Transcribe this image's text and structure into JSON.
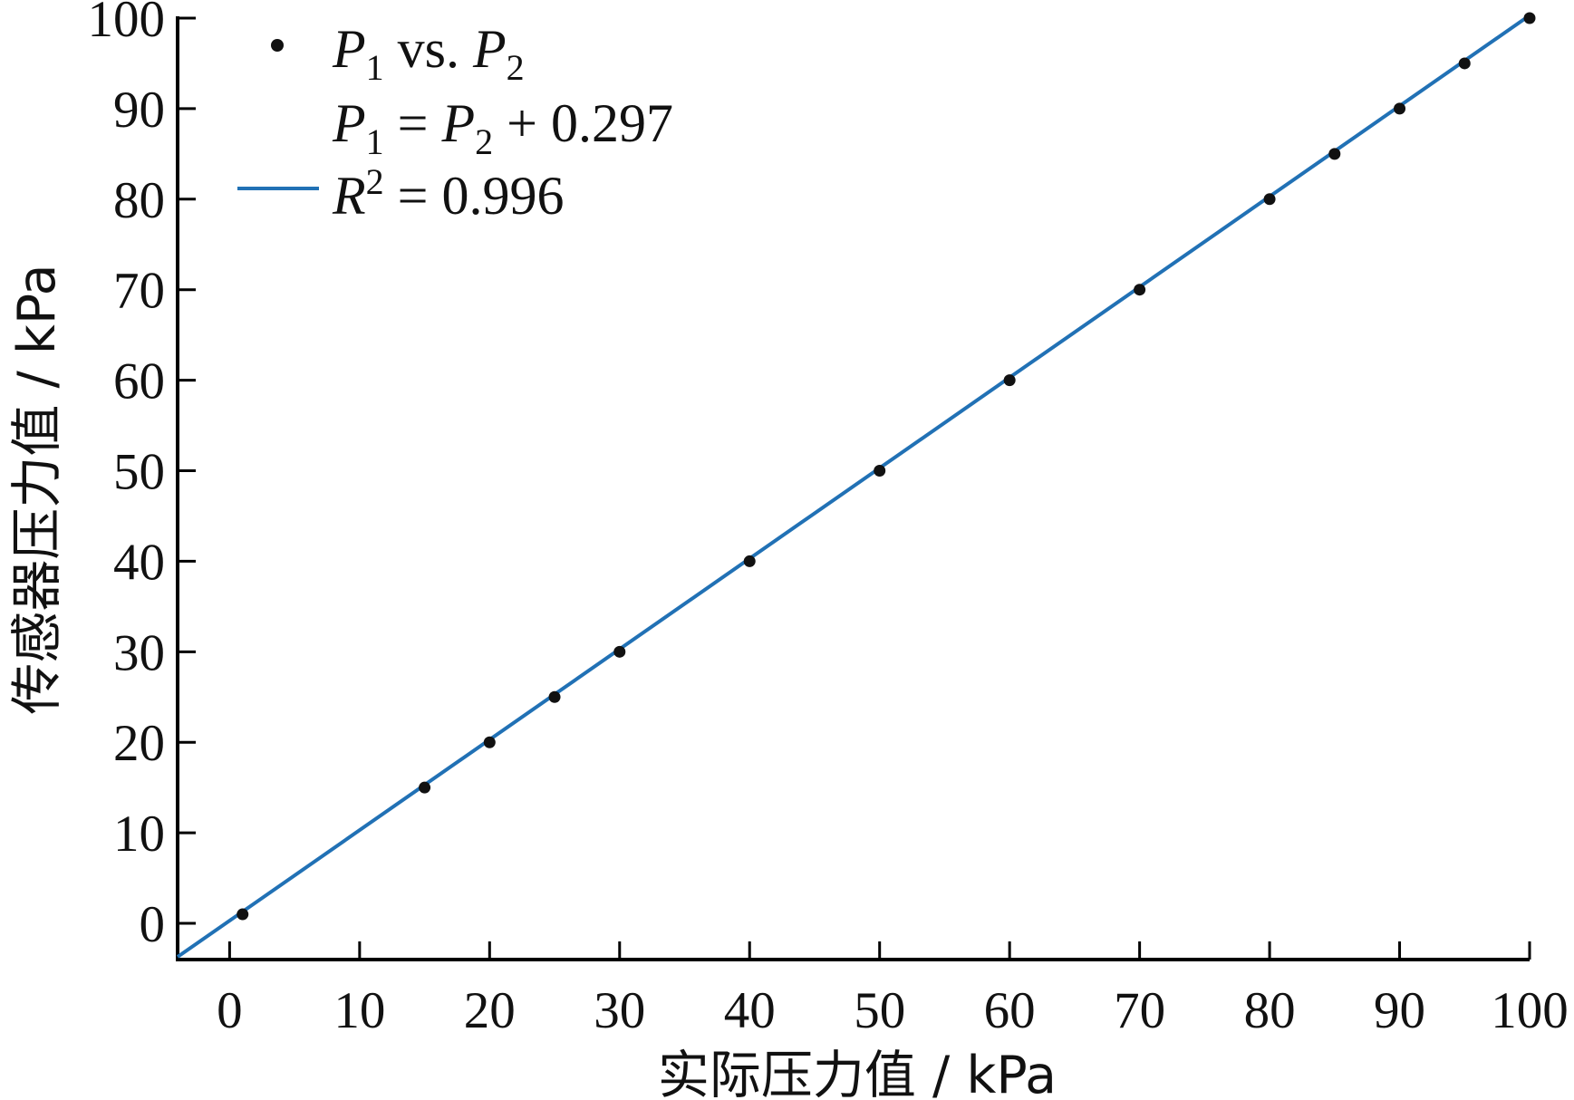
{
  "chart_data": {
    "type": "scatter",
    "xlabel": "实际压力值 / kPa",
    "ylabel": "传感器压力值 / kPa",
    "xlim": [
      -4,
      100
    ],
    "ylim": [
      -4,
      100
    ],
    "x_ticks": [
      0,
      10,
      20,
      30,
      40,
      50,
      60,
      70,
      80,
      90,
      100
    ],
    "y_ticks": [
      0,
      10,
      20,
      30,
      40,
      50,
      60,
      70,
      80,
      90,
      100
    ],
    "grid": false,
    "legend_position": "top-left",
    "series": [
      {
        "name": "P1 vs. P2",
        "kind": "scatter",
        "color": "#111111",
        "x": [
          1,
          15,
          20,
          25,
          30,
          40,
          50,
          60,
          70,
          80,
          85,
          90,
          95,
          100
        ],
        "y": [
          1,
          15,
          20,
          25,
          30,
          40,
          50,
          60,
          70,
          80,
          85,
          90,
          95,
          100
        ]
      },
      {
        "name": "P1 = P2 + 0.297, R2 = 0.996",
        "kind": "line",
        "color": "#2171b5",
        "slope": 1,
        "intercept": 0.297
      }
    ],
    "legend": {
      "scatter_label": {
        "p1": "P",
        "sub1": "1",
        "vs": " vs. ",
        "p2": "P",
        "sub2": "2"
      },
      "equation": {
        "p1": "P",
        "sub1": "1",
        "eq": " = ",
        "p2": "P",
        "sub2": "2",
        "rest": " + 0.297"
      },
      "r2": {
        "r": "R",
        "sup": "2",
        "rest": " = 0.996"
      }
    }
  }
}
